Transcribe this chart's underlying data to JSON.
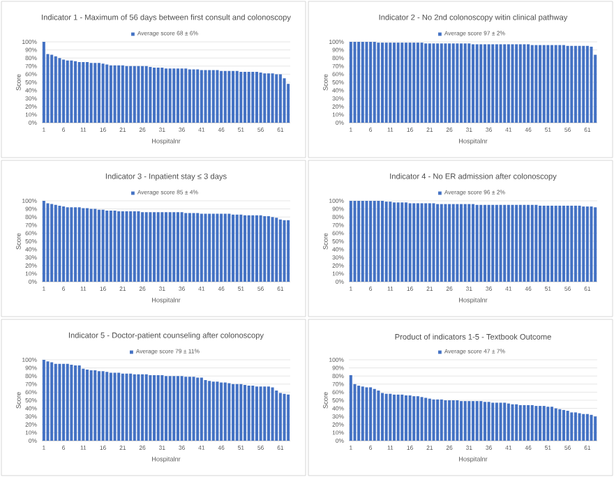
{
  "chart_data": [
    {
      "type": "bar",
      "title": "Indicator 1 - Maximum of 56 days between first consult and colonoscopy",
      "xlabel": "Hospitalnr",
      "ylabel": "Score",
      "legend": "top",
      "grid": "y",
      "x": [
        1,
        2,
        3,
        4,
        5,
        6,
        7,
        8,
        9,
        10,
        11,
        12,
        13,
        14,
        15,
        16,
        17,
        18,
        19,
        20,
        21,
        22,
        23,
        24,
        25,
        26,
        27,
        28,
        29,
        30,
        31,
        32,
        33,
        34,
        35,
        36,
        37,
        38,
        39,
        40,
        41,
        42,
        43,
        44,
        45,
        46,
        47,
        48,
        49,
        50,
        51,
        52,
        53,
        54,
        55,
        56,
        57,
        58,
        59,
        60,
        61,
        62,
        63
      ],
      "xlim": [
        0.5,
        63.5
      ],
      "xticks": [
        1,
        6,
        11,
        16,
        21,
        26,
        31,
        36,
        41,
        46,
        51,
        56,
        61
      ],
      "ylim": [
        0,
        100
      ],
      "yticks": [
        {
          "value": 0,
          "label": "0%"
        },
        {
          "value": 10,
          "label": "10%"
        },
        {
          "value": 20,
          "label": "20%"
        },
        {
          "value": 30,
          "label": "30%"
        },
        {
          "value": 40,
          "label": "40%"
        },
        {
          "value": 50,
          "label": "50%"
        },
        {
          "value": 60,
          "label": "60%"
        },
        {
          "value": 70,
          "label": "70%"
        },
        {
          "value": 80,
          "label": "80%"
        },
        {
          "value": 90,
          "label": "90%"
        },
        {
          "value": 100,
          "label": "100%"
        }
      ],
      "series": [
        {
          "name": "Average score 68 ± 6%",
          "color": "#4472c4",
          "values": [
            100,
            85,
            84,
            82,
            80,
            78,
            77,
            77,
            76,
            75,
            75,
            75,
            74,
            74,
            74,
            73,
            72,
            71,
            71,
            71,
            71,
            70,
            70,
            70,
            70,
            70,
            70,
            69,
            68,
            68,
            68,
            67,
            67,
            67,
            67,
            67,
            67,
            66,
            66,
            66,
            65,
            65,
            65,
            65,
            65,
            64,
            64,
            64,
            64,
            64,
            63,
            63,
            63,
            63,
            63,
            62,
            61,
            61,
            61,
            60,
            60,
            55,
            48
          ]
        }
      ]
    },
    {
      "type": "bar",
      "title": "Indicator 2 - No 2nd colonoscopy witin clinical pathway",
      "xlabel": "Hospitalnr",
      "ylabel": "Score",
      "legend": "top",
      "grid": "y",
      "x": [
        1,
        2,
        3,
        4,
        5,
        6,
        7,
        8,
        9,
        10,
        11,
        12,
        13,
        14,
        15,
        16,
        17,
        18,
        19,
        20,
        21,
        22,
        23,
        24,
        25,
        26,
        27,
        28,
        29,
        30,
        31,
        32,
        33,
        34,
        35,
        36,
        37,
        38,
        39,
        40,
        41,
        42,
        43,
        44,
        45,
        46,
        47,
        48,
        49,
        50,
        51,
        52,
        53,
        54,
        55,
        56,
        57,
        58,
        59,
        60,
        61,
        62,
        63
      ],
      "xlim": [
        0.5,
        63.5
      ],
      "xticks": [
        1,
        6,
        11,
        16,
        21,
        26,
        31,
        36,
        41,
        46,
        51,
        56,
        61
      ],
      "ylim": [
        0,
        100
      ],
      "yticks": [
        {
          "value": 0,
          "label": "0%"
        },
        {
          "value": 10,
          "label": "10%"
        },
        {
          "value": 20,
          "label": "20%"
        },
        {
          "value": 30,
          "label": "30%"
        },
        {
          "value": 40,
          "label": "40%"
        },
        {
          "value": 50,
          "label": "50%"
        },
        {
          "value": 60,
          "label": "60%"
        },
        {
          "value": 70,
          "label": "70%"
        },
        {
          "value": 80,
          "label": "80%"
        },
        {
          "value": 90,
          "label": "90%"
        },
        {
          "value": 100,
          "label": "100%"
        }
      ],
      "series": [
        {
          "name": "Average score 97 ± 2%",
          "color": "#4472c4",
          "values": [
            100,
            100,
            100,
            100,
            100,
            100,
            100,
            99,
            99,
            99,
            99,
            99,
            99,
            99,
            99,
            99,
            99,
            99,
            99,
            98,
            98,
            98,
            98,
            98,
            98,
            98,
            98,
            98,
            98,
            98,
            98,
            97,
            97,
            97,
            97,
            97,
            97,
            97,
            97,
            97,
            97,
            97,
            97,
            97,
            97,
            97,
            96,
            96,
            96,
            96,
            96,
            96,
            96,
            96,
            96,
            95,
            95,
            95,
            95,
            95,
            95,
            94,
            84
          ]
        }
      ]
    },
    {
      "type": "bar",
      "title": "Indicator 3 - Inpatient stay ≤ 3 days",
      "xlabel": "Hospitalnr",
      "ylabel": "Score",
      "legend": "top",
      "grid": "y",
      "x": [
        1,
        2,
        3,
        4,
        5,
        6,
        7,
        8,
        9,
        10,
        11,
        12,
        13,
        14,
        15,
        16,
        17,
        18,
        19,
        20,
        21,
        22,
        23,
        24,
        25,
        26,
        27,
        28,
        29,
        30,
        31,
        32,
        33,
        34,
        35,
        36,
        37,
        38,
        39,
        40,
        41,
        42,
        43,
        44,
        45,
        46,
        47,
        48,
        49,
        50,
        51,
        52,
        53,
        54,
        55,
        56,
        57,
        58,
        59,
        60,
        61,
        62,
        63
      ],
      "xlim": [
        0.5,
        63.5
      ],
      "xticks": [
        1,
        6,
        11,
        16,
        21,
        26,
        31,
        36,
        41,
        46,
        51,
        56,
        61
      ],
      "ylim": [
        0,
        100
      ],
      "yticks": [
        {
          "value": 0,
          "label": "0%"
        },
        {
          "value": 10,
          "label": "10%"
        },
        {
          "value": 20,
          "label": "20%"
        },
        {
          "value": 30,
          "label": "30%"
        },
        {
          "value": 40,
          "label": "40%"
        },
        {
          "value": 50,
          "label": "50%"
        },
        {
          "value": 60,
          "label": "60%"
        },
        {
          "value": 70,
          "label": "70%"
        },
        {
          "value": 80,
          "label": "80%"
        },
        {
          "value": 90,
          "label": "90%"
        },
        {
          "value": 100,
          "label": "100%"
        }
      ],
      "series": [
        {
          "name": "Average score 85 ± 4%",
          "color": "#4472c4",
          "values": [
            100,
            97,
            96,
            95,
            94,
            93,
            92,
            92,
            92,
            92,
            91,
            91,
            90,
            90,
            89,
            89,
            88,
            88,
            88,
            87,
            87,
            87,
            87,
            87,
            87,
            86,
            86,
            86,
            86,
            86,
            86,
            86,
            86,
            86,
            86,
            86,
            85,
            85,
            85,
            85,
            84,
            84,
            84,
            84,
            84,
            84,
            84,
            84,
            83,
            83,
            83,
            82,
            82,
            82,
            82,
            82,
            81,
            81,
            80,
            79,
            77,
            76,
            76
          ]
        }
      ]
    },
    {
      "type": "bar",
      "title": "Indicator 4 - No ER admission after colonoscopy",
      "xlabel": "Hospitalnr",
      "ylabel": "Score",
      "legend": "top",
      "grid": "y",
      "x": [
        1,
        2,
        3,
        4,
        5,
        6,
        7,
        8,
        9,
        10,
        11,
        12,
        13,
        14,
        15,
        16,
        17,
        18,
        19,
        20,
        21,
        22,
        23,
        24,
        25,
        26,
        27,
        28,
        29,
        30,
        31,
        32,
        33,
        34,
        35,
        36,
        37,
        38,
        39,
        40,
        41,
        42,
        43,
        44,
        45,
        46,
        47,
        48,
        49,
        50,
        51,
        52,
        53,
        54,
        55,
        56,
        57,
        58,
        59,
        60,
        61,
        62,
        63
      ],
      "xlim": [
        0.5,
        63.5
      ],
      "xticks": [
        1,
        6,
        11,
        16,
        21,
        26,
        31,
        36,
        41,
        46,
        51,
        56,
        61
      ],
      "ylim": [
        0,
        100
      ],
      "yticks": [
        {
          "value": 0,
          "label": "0%"
        },
        {
          "value": 10,
          "label": "10%"
        },
        {
          "value": 20,
          "label": "20%"
        },
        {
          "value": 30,
          "label": "30%"
        },
        {
          "value": 40,
          "label": "40%"
        },
        {
          "value": 50,
          "label": "50%"
        },
        {
          "value": 60,
          "label": "60%"
        },
        {
          "value": 70,
          "label": "70%"
        },
        {
          "value": 80,
          "label": "80%"
        },
        {
          "value": 90,
          "label": "90%"
        },
        {
          "value": 100,
          "label": "100%"
        }
      ],
      "series": [
        {
          "name": "Average score 96 ± 2%",
          "color": "#4472c4",
          "values": [
            100,
            100,
            100,
            100,
            100,
            100,
            100,
            100,
            100,
            99,
            99,
            98,
            98,
            98,
            98,
            97,
            97,
            97,
            97,
            97,
            97,
            97,
            96,
            96,
            96,
            96,
            96,
            96,
            96,
            96,
            96,
            96,
            95,
            95,
            95,
            95,
            95,
            95,
            95,
            95,
            95,
            95,
            95,
            95,
            95,
            95,
            95,
            95,
            94,
            94,
            94,
            94,
            94,
            94,
            94,
            94,
            94,
            94,
            94,
            93,
            93,
            93,
            92
          ]
        }
      ]
    },
    {
      "type": "bar",
      "title": "Indicator 5 - Doctor-patient counseling after colonoscopy",
      "xlabel": "Hospitalnr",
      "ylabel": "Score",
      "legend": "top",
      "grid": "y",
      "x": [
        1,
        2,
        3,
        4,
        5,
        6,
        7,
        8,
        9,
        10,
        11,
        12,
        13,
        14,
        15,
        16,
        17,
        18,
        19,
        20,
        21,
        22,
        23,
        24,
        25,
        26,
        27,
        28,
        29,
        30,
        31,
        32,
        33,
        34,
        35,
        36,
        37,
        38,
        39,
        40,
        41,
        42,
        43,
        44,
        45,
        46,
        47,
        48,
        49,
        50,
        51,
        52,
        53,
        54,
        55,
        56,
        57,
        58,
        59,
        60,
        61,
        62,
        63
      ],
      "xlim": [
        0.5,
        63.5
      ],
      "xticks": [
        1,
        6,
        11,
        16,
        21,
        26,
        31,
        36,
        41,
        46,
        51,
        56,
        61
      ],
      "ylim": [
        0,
        100
      ],
      "yticks": [
        {
          "value": 0,
          "label": "0%"
        },
        {
          "value": 10,
          "label": "10%"
        },
        {
          "value": 20,
          "label": "20%"
        },
        {
          "value": 30,
          "label": "30%"
        },
        {
          "value": 40,
          "label": "40%"
        },
        {
          "value": 50,
          "label": "50%"
        },
        {
          "value": 60,
          "label": "60%"
        },
        {
          "value": 70,
          "label": "70%"
        },
        {
          "value": 80,
          "label": "80%"
        },
        {
          "value": 90,
          "label": "90%"
        },
        {
          "value": 100,
          "label": "100%"
        }
      ],
      "series": [
        {
          "name": "Average score 79 ± 11%",
          "color": "#4472c4",
          "values": [
            100,
            98,
            97,
            95,
            95,
            95,
            95,
            94,
            93,
            93,
            89,
            88,
            87,
            87,
            86,
            86,
            85,
            84,
            84,
            84,
            83,
            83,
            83,
            82,
            82,
            82,
            82,
            81,
            81,
            81,
            81,
            80,
            80,
            80,
            80,
            80,
            79,
            79,
            79,
            78,
            78,
            75,
            74,
            73,
            73,
            72,
            72,
            71,
            70,
            70,
            70,
            69,
            68,
            68,
            67,
            67,
            67,
            67,
            66,
            62,
            59,
            58,
            57
          ]
        }
      ]
    },
    {
      "type": "bar",
      "title": "Product of indicators 1-5 - Textbook Outcome",
      "xlabel": "Hospitalnr",
      "ylabel": "Score",
      "legend": "top",
      "grid": "y",
      "x": [
        1,
        2,
        3,
        4,
        5,
        6,
        7,
        8,
        9,
        10,
        11,
        12,
        13,
        14,
        15,
        16,
        17,
        18,
        19,
        20,
        21,
        22,
        23,
        24,
        25,
        26,
        27,
        28,
        29,
        30,
        31,
        32,
        33,
        34,
        35,
        36,
        37,
        38,
        39,
        40,
        41,
        42,
        43,
        44,
        45,
        46,
        47,
        48,
        49,
        50,
        51,
        52,
        53,
        54,
        55,
        56,
        57,
        58,
        59,
        60,
        61,
        62,
        63
      ],
      "xlim": [
        0.5,
        63.5
      ],
      "xticks": [
        1,
        6,
        11,
        16,
        21,
        26,
        31,
        36,
        41,
        46,
        51,
        56,
        61
      ],
      "ylim": [
        0,
        100
      ],
      "yticks": [
        {
          "value": 0,
          "label": "0%"
        },
        {
          "value": 10,
          "label": "10%"
        },
        {
          "value": 20,
          "label": "20%"
        },
        {
          "value": 30,
          "label": "30%"
        },
        {
          "value": 40,
          "label": "40%"
        },
        {
          "value": 50,
          "label": "50%"
        },
        {
          "value": 60,
          "label": "60%"
        },
        {
          "value": 70,
          "label": "70%"
        },
        {
          "value": 80,
          "label": "80%"
        },
        {
          "value": 90,
          "label": "90%"
        },
        {
          "value": 100,
          "label": "100%"
        }
      ],
      "series": [
        {
          "name": "Average score 47 ± 7%",
          "color": "#4472c4",
          "values": [
            81,
            70,
            68,
            67,
            66,
            66,
            64,
            62,
            59,
            58,
            58,
            57,
            57,
            57,
            56,
            56,
            55,
            55,
            54,
            53,
            52,
            51,
            51,
            51,
            50,
            50,
            50,
            50,
            49,
            49,
            49,
            49,
            49,
            49,
            48,
            48,
            47,
            47,
            47,
            47,
            46,
            45,
            45,
            44,
            44,
            44,
            44,
            43,
            43,
            43,
            42,
            42,
            40,
            39,
            38,
            37,
            35,
            35,
            34,
            33,
            33,
            32,
            30
          ]
        }
      ]
    }
  ]
}
